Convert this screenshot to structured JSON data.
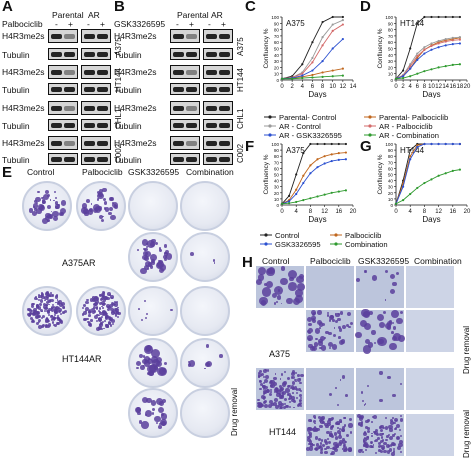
{
  "panels": {
    "A": "A",
    "B": "B",
    "C": "C",
    "D": "D",
    "E": "E",
    "F": "F",
    "G": "G",
    "H": "H"
  },
  "blotA": {
    "col_parental": "Parental",
    "col_ar": "AR",
    "drug": "Palbociclib",
    "minus": "-",
    "plus": "+",
    "rows": [
      "H4R3me2s",
      "Tubulin",
      "H4R3me2s",
      "Tubulin",
      "H4R3me2s",
      "Tubulin",
      "H4R3me2s",
      "Tubulin"
    ],
    "cells": [
      "A375",
      "HT144",
      "CHL1",
      "C002"
    ]
  },
  "blotB": {
    "col_parental": "Parental",
    "col_ar": "AR",
    "drug": "GSK3326595",
    "minus": "-",
    "plus": "+",
    "rows": [
      "H4R3me2s",
      "Tubulin",
      "H4R3me2s",
      "Tubulin",
      "H4R3me2s",
      "Tubulin",
      "H4R3me2s",
      "Tubulin"
    ],
    "cells": [
      "A375",
      "HT144",
      "CHL1",
      "C002"
    ]
  },
  "legendCD": [
    "Parental- Control",
    "Parental- Palbociclib",
    "AR - Control",
    "AR - Palbociclib",
    "AR - GSK3326595",
    "AR - Combination"
  ],
  "legendFG": [
    "Control",
    "Palbociclib",
    "GSK3326595",
    "Combination"
  ],
  "colors": {
    "control": "#222222",
    "palbo": "#c0661c",
    "gsk": "#2a4fd0",
    "combo": "#2e9a2e",
    "ar_control": "#9a9a9a",
    "ar_palbo": "#d36a6a"
  },
  "chart_data": [
    {
      "panel": "C",
      "type": "line",
      "title": "A375",
      "xlabel": "Days",
      "ylabel": "Confluency %",
      "xlim": [
        0,
        14
      ],
      "ylim": [
        0,
        100
      ],
      "xticks": [
        0,
        2,
        4,
        6,
        8,
        10,
        12,
        14
      ],
      "yticks": [
        0,
        10,
        20,
        30,
        40,
        50,
        60,
        70,
        80,
        90,
        100
      ],
      "series": [
        {
          "name": "Parental- Control",
          "x": [
            0,
            2,
            4,
            6,
            8,
            10,
            12
          ],
          "y": [
            2,
            6,
            25,
            60,
            92,
            100,
            100
          ]
        },
        {
          "name": "Parental- Palbociclib",
          "x": [
            0,
            2,
            4,
            6,
            8,
            10,
            12
          ],
          "y": [
            2,
            3,
            5,
            8,
            12,
            15,
            18
          ]
        },
        {
          "name": "AR - Control",
          "x": [
            0,
            2,
            4,
            6,
            8,
            10,
            12
          ],
          "y": [
            2,
            4,
            12,
            35,
            68,
            88,
            95
          ]
        },
        {
          "name": "AR - Palbociclib",
          "x": [
            0,
            2,
            4,
            6,
            8,
            10,
            12
          ],
          "y": [
            2,
            4,
            10,
            28,
            55,
            78,
            88
          ]
        },
        {
          "name": "AR - GSK3326595",
          "x": [
            0,
            2,
            4,
            6,
            8,
            10,
            12
          ],
          "y": [
            2,
            3,
            7,
            15,
            30,
            50,
            65
          ]
        },
        {
          "name": "AR - Combination",
          "x": [
            0,
            2,
            4,
            6,
            8,
            10,
            12
          ],
          "y": [
            2,
            2,
            3,
            4,
            5,
            6,
            7
          ]
        }
      ]
    },
    {
      "panel": "D",
      "type": "line",
      "title": "HT144",
      "xlabel": "Days",
      "ylabel": "Confluency %",
      "xlim": [
        0,
        20
      ],
      "ylim": [
        0,
        100
      ],
      "xticks": [
        0,
        2,
        4,
        6,
        8,
        10,
        12,
        14,
        16,
        18,
        20
      ],
      "yticks": [
        0,
        10,
        20,
        30,
        40,
        50,
        60,
        70,
        80,
        90,
        100
      ],
      "series": [
        {
          "name": "Parental- Control",
          "x": [
            0,
            2,
            4,
            6,
            8,
            10,
            12,
            14,
            16,
            18
          ],
          "y": [
            2,
            15,
            50,
            90,
            100,
            100,
            100,
            100,
            100,
            100
          ]
        },
        {
          "name": "Parental- Palbociclib",
          "x": [
            0,
            2,
            4,
            6,
            8,
            10,
            12,
            14,
            16,
            18
          ],
          "y": [
            2,
            6,
            18,
            35,
            48,
            55,
            60,
            63,
            65,
            67
          ]
        },
        {
          "name": "AR - Control",
          "x": [
            0,
            2,
            4,
            6,
            8,
            10,
            12,
            14,
            16,
            18
          ],
          "y": [
            2,
            8,
            25,
            42,
            52,
            58,
            62,
            65,
            67,
            68
          ]
        },
        {
          "name": "AR - Palbociclib",
          "x": [
            0,
            2,
            4,
            6,
            8,
            10,
            12,
            14,
            16,
            18
          ],
          "y": [
            2,
            7,
            22,
            38,
            48,
            54,
            58,
            61,
            63,
            64
          ]
        },
        {
          "name": "AR - GSK3326595",
          "x": [
            0,
            2,
            4,
            6,
            8,
            10,
            12,
            14,
            16,
            18
          ],
          "y": [
            2,
            6,
            18,
            32,
            42,
            48,
            52,
            55,
            57,
            58
          ]
        },
        {
          "name": "AR - Combination",
          "x": [
            0,
            2,
            4,
            6,
            8,
            10,
            12,
            14,
            16,
            18
          ],
          "y": [
            2,
            3,
            6,
            10,
            14,
            17,
            20,
            22,
            24,
            25
          ]
        }
      ]
    },
    {
      "panel": "F",
      "type": "line",
      "title": "A375",
      "xlabel": "Days",
      "ylabel": "Confluency %",
      "xlim": [
        0,
        20
      ],
      "ylim": [
        0,
        100
      ],
      "xticks": [
        0,
        4,
        8,
        12,
        16,
        20
      ],
      "yticks": [
        0,
        10,
        20,
        30,
        40,
        50,
        60,
        70,
        80,
        90,
        100
      ],
      "series": [
        {
          "name": "Control",
          "x": [
            0,
            2,
            4,
            6,
            8,
            10,
            12,
            14,
            16,
            18
          ],
          "y": [
            2,
            15,
            50,
            85,
            100,
            100,
            100,
            100,
            100,
            100
          ]
        },
        {
          "name": "Palbociclib",
          "x": [
            0,
            2,
            4,
            6,
            8,
            10,
            12,
            14,
            16,
            18
          ],
          "y": [
            2,
            8,
            25,
            48,
            65,
            75,
            80,
            83,
            85,
            86
          ]
        },
        {
          "name": "GSK3326595",
          "x": [
            0,
            2,
            4,
            6,
            8,
            10,
            12,
            14,
            16,
            18
          ],
          "y": [
            2,
            6,
            18,
            36,
            52,
            62,
            68,
            72,
            74,
            75
          ]
        },
        {
          "name": "Combination",
          "x": [
            0,
            2,
            4,
            6,
            8,
            10,
            12,
            14,
            16,
            18
          ],
          "y": [
            2,
            3,
            5,
            8,
            11,
            14,
            17,
            20,
            22,
            24
          ]
        }
      ]
    },
    {
      "panel": "G",
      "type": "line",
      "title": "HT144",
      "xlabel": "Days",
      "ylabel": "Confluency %",
      "xlim": [
        0,
        20
      ],
      "ylim": [
        0,
        100
      ],
      "xticks": [
        0,
        4,
        8,
        12,
        16,
        20
      ],
      "yticks": [
        0,
        10,
        20,
        30,
        40,
        50,
        60,
        70,
        80,
        90,
        100
      ],
      "series": [
        {
          "name": "Control",
          "x": [
            0,
            2,
            4,
            6,
            8,
            10,
            12,
            14,
            16,
            18
          ],
          "y": [
            2,
            40,
            90,
            100,
            100,
            100,
            100,
            100,
            100,
            100
          ]
        },
        {
          "name": "Palbociclib",
          "x": [
            0,
            2,
            4,
            6,
            8,
            10,
            12,
            14,
            16,
            18
          ],
          "y": [
            2,
            35,
            80,
            98,
            100,
            100,
            100,
            100,
            100,
            100
          ]
        },
        {
          "name": "GSK3326595",
          "x": [
            0,
            2,
            4,
            6,
            8,
            10,
            12,
            14,
            16,
            18
          ],
          "y": [
            2,
            30,
            75,
            95,
            100,
            100,
            100,
            100,
            100,
            100
          ]
        },
        {
          "name": "Combination",
          "x": [
            0,
            2,
            4,
            6,
            8,
            10,
            12,
            14,
            16,
            18
          ],
          "y": [
            2,
            8,
            18,
            28,
            36,
            42,
            48,
            52,
            56,
            58
          ]
        }
      ]
    }
  ],
  "panelE": {
    "cols": [
      "Control",
      "Palbociclib",
      "GSK3326595",
      "Combination"
    ],
    "rows": [
      "A375AR",
      "HT144AR"
    ],
    "side": "Drug removal"
  },
  "panelH": {
    "cols": [
      "Control",
      "Palbociclib",
      "GSK3326595",
      "Combination"
    ],
    "rows": [
      "A375",
      "HT144"
    ],
    "side": "Drug removal"
  }
}
